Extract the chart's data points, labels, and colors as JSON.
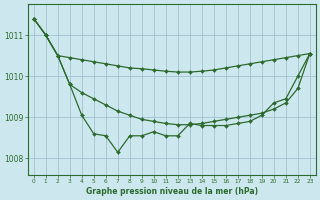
{
  "title": "Graphe pression niveau de la mer (hPa)",
  "bg_color": "#cce8ee",
  "grid_color": "#99bbcc",
  "line_color": "#2d6a2d",
  "x_labels": [
    "0",
    "1",
    "2",
    "3",
    "4",
    "5",
    "6",
    "7",
    "8",
    "9",
    "10",
    "11",
    "12",
    "13",
    "14",
    "15",
    "16",
    "17",
    "18",
    "19",
    "20",
    "21",
    "22",
    "23"
  ],
  "ylim": [
    1007.6,
    1011.75
  ],
  "yticks": [
    1008,
    1009,
    1010,
    1011
  ],
  "line_steep": [
    [
      0,
      1011.4
    ],
    [
      1,
      1011.0
    ],
    [
      2,
      1010.5
    ]
  ],
  "line_upper": [
    [
      0,
      1011.4
    ],
    [
      1,
      1011.0
    ],
    [
      2,
      1010.5
    ],
    [
      3,
      1010.45
    ],
    [
      4,
      1010.4
    ],
    [
      5,
      1010.35
    ],
    [
      6,
      1010.3
    ],
    [
      7,
      1010.25
    ],
    [
      8,
      1010.2
    ],
    [
      9,
      1010.18
    ],
    [
      10,
      1010.15
    ],
    [
      11,
      1010.12
    ],
    [
      12,
      1010.1
    ],
    [
      13,
      1010.1
    ],
    [
      14,
      1010.12
    ],
    [
      15,
      1010.15
    ],
    [
      16,
      1010.2
    ],
    [
      17,
      1010.25
    ],
    [
      18,
      1010.3
    ],
    [
      19,
      1010.35
    ],
    [
      20,
      1010.4
    ],
    [
      21,
      1010.45
    ],
    [
      22,
      1010.5
    ],
    [
      23,
      1010.55
    ]
  ],
  "line_lower_extra": [
    [
      0,
      1011.4
    ],
    [
      1,
      1011.0
    ],
    [
      2,
      1010.5
    ],
    [
      3,
      1009.8
    ],
    [
      4,
      1009.6
    ],
    [
      5,
      1009.45
    ],
    [
      6,
      1009.3
    ],
    [
      7,
      1009.15
    ],
    [
      8,
      1009.05
    ],
    [
      9,
      1008.95
    ],
    [
      10,
      1008.9
    ],
    [
      11,
      1008.85
    ],
    [
      12,
      1008.82
    ],
    [
      13,
      1008.82
    ],
    [
      14,
      1008.85
    ],
    [
      15,
      1008.9
    ],
    [
      16,
      1008.95
    ],
    [
      17,
      1009.0
    ],
    [
      18,
      1009.05
    ],
    [
      19,
      1009.1
    ],
    [
      20,
      1009.2
    ],
    [
      21,
      1009.35
    ],
    [
      22,
      1009.7
    ],
    [
      23,
      1010.55
    ]
  ],
  "line_zigzag": [
    [
      0,
      1011.4
    ],
    [
      1,
      1011.0
    ],
    [
      2,
      1010.5
    ],
    [
      3,
      1009.8
    ],
    [
      4,
      1009.05
    ],
    [
      5,
      1008.6
    ],
    [
      6,
      1008.55
    ],
    [
      7,
      1008.15
    ],
    [
      8,
      1008.55
    ],
    [
      9,
      1008.55
    ],
    [
      10,
      1008.65
    ],
    [
      11,
      1008.55
    ],
    [
      12,
      1008.55
    ],
    [
      13,
      1008.85
    ],
    [
      14,
      1008.8
    ],
    [
      15,
      1008.8
    ],
    [
      16,
      1008.8
    ],
    [
      17,
      1008.85
    ],
    [
      18,
      1008.9
    ],
    [
      19,
      1009.05
    ],
    [
      20,
      1009.35
    ],
    [
      21,
      1009.45
    ],
    [
      22,
      1010.0
    ],
    [
      23,
      1010.55
    ]
  ]
}
